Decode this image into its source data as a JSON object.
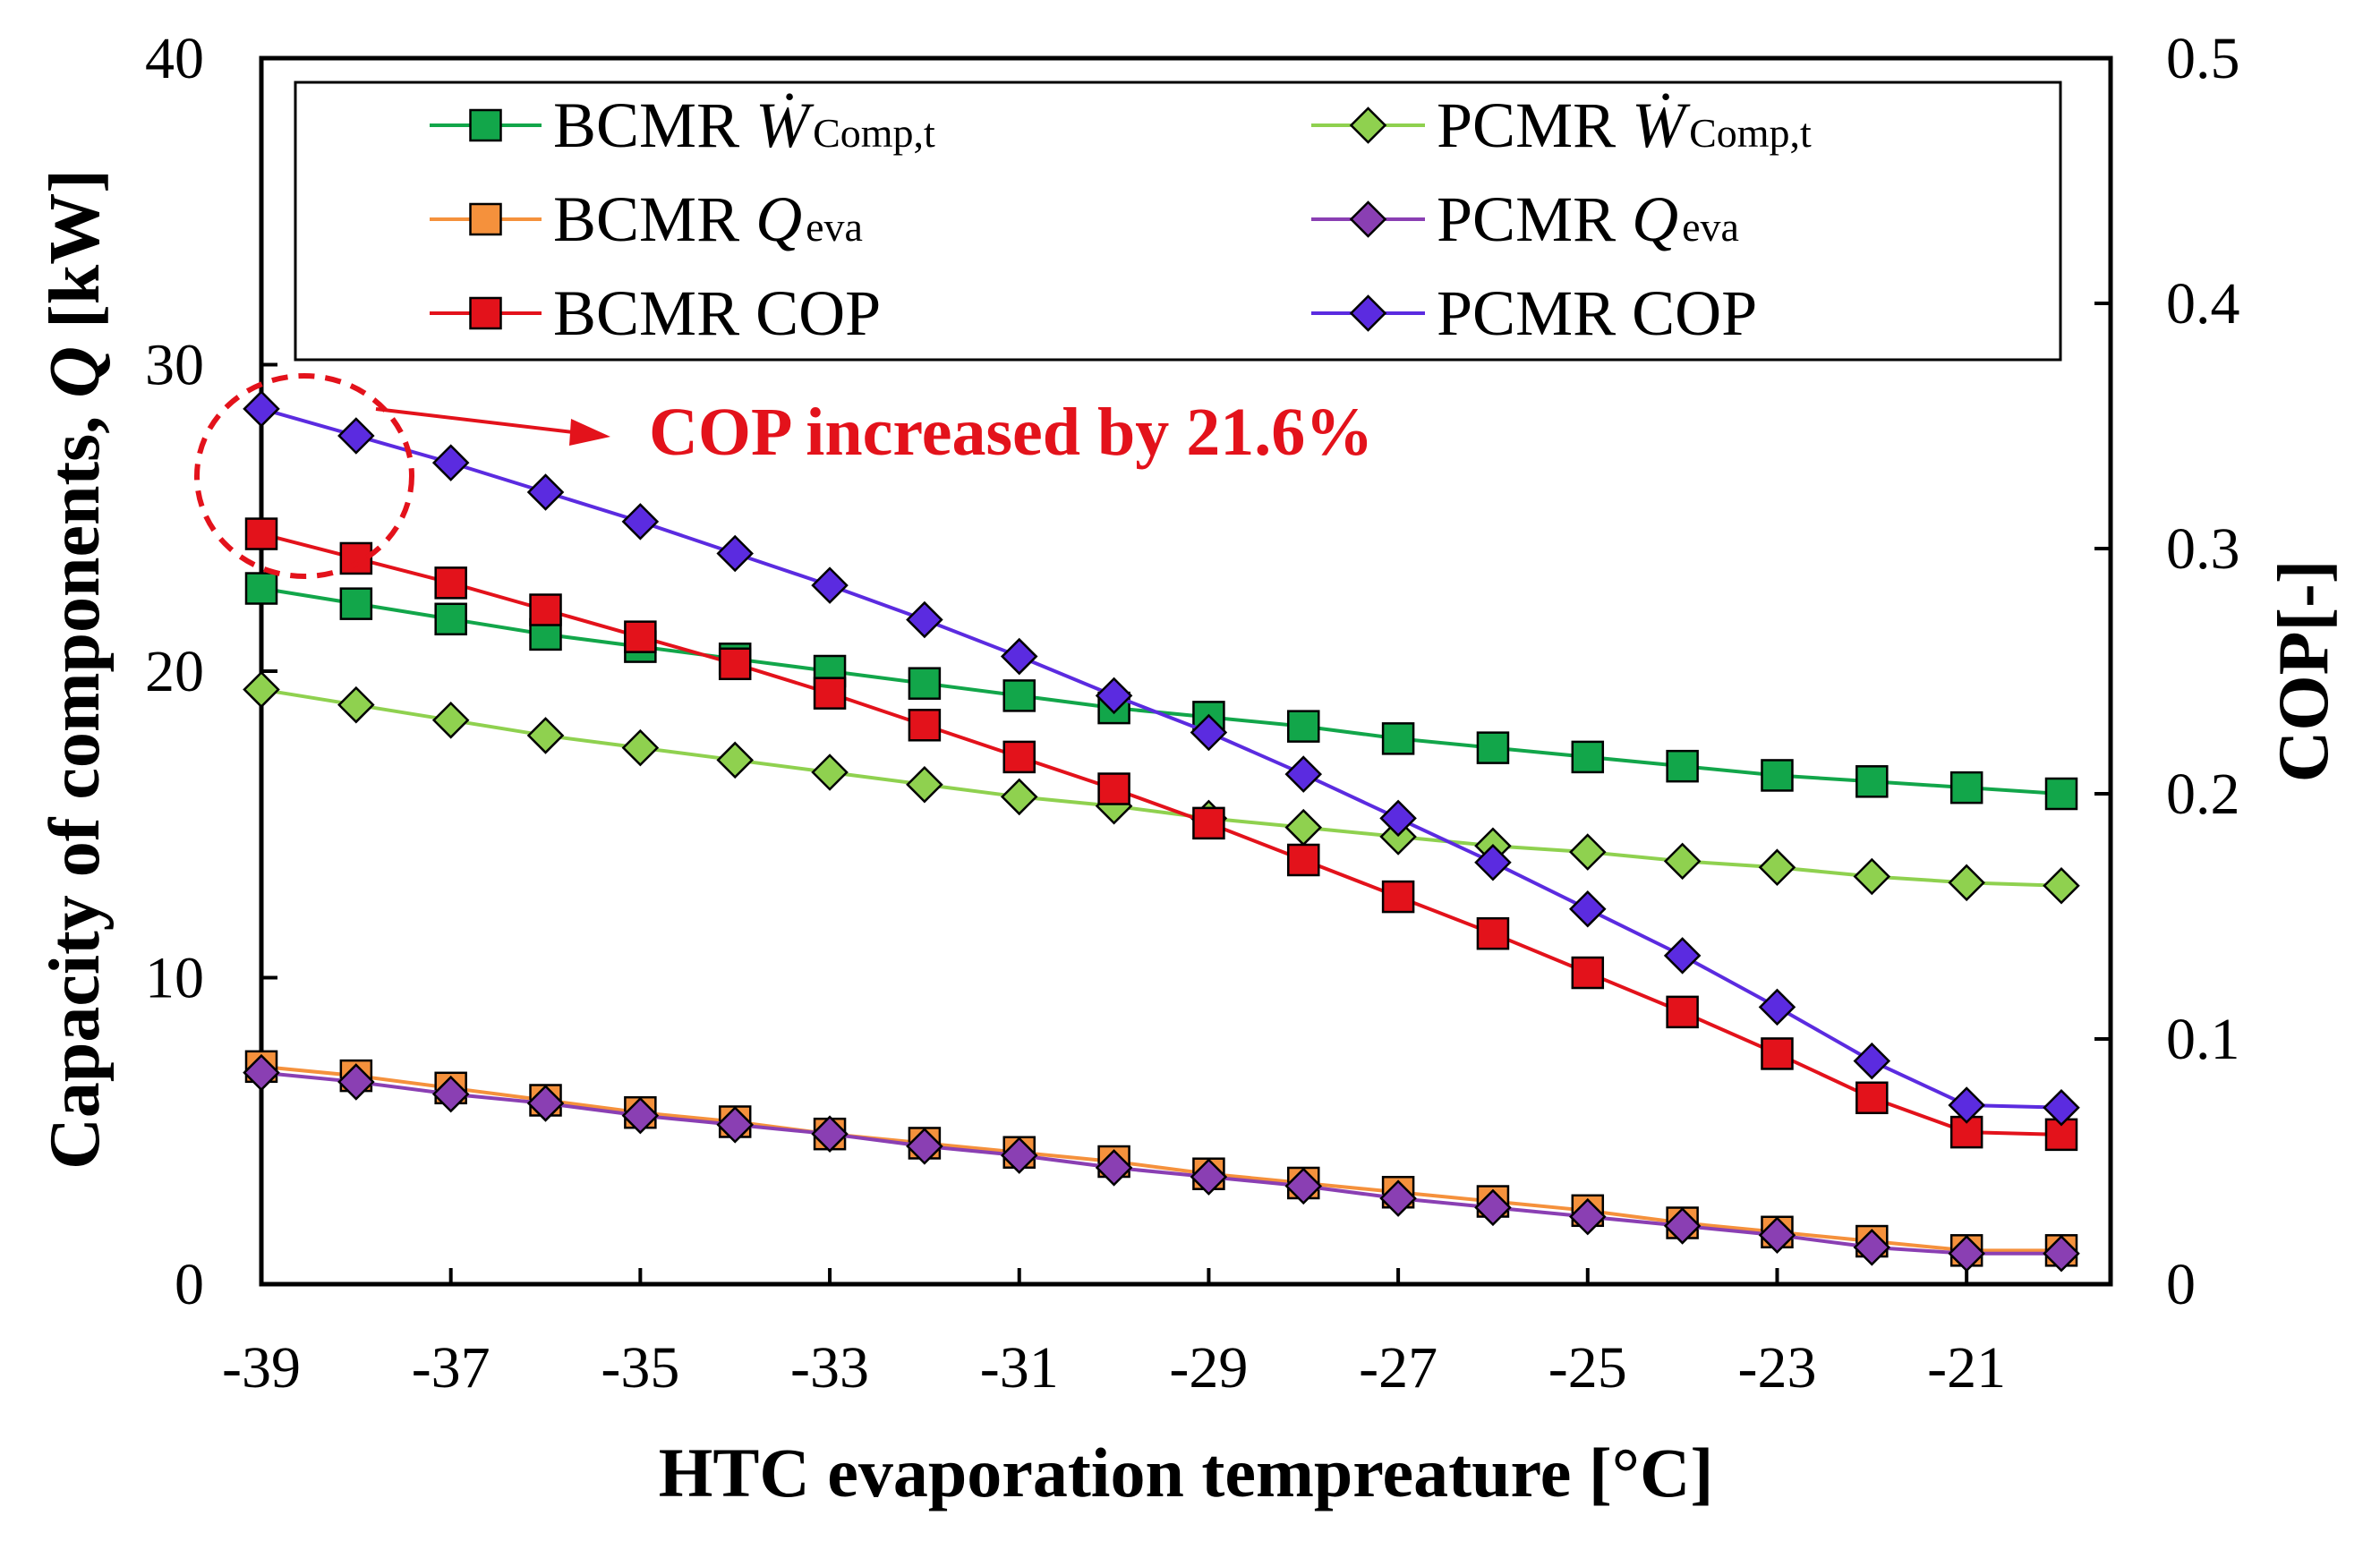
{
  "chart_data": {
    "type": "line",
    "x": [
      -39,
      -38,
      -37,
      -36,
      -35,
      -34,
      -33,
      -32,
      -31,
      -30,
      -29,
      -28,
      -27,
      -26,
      -25,
      -24,
      -23,
      -22,
      -21,
      -20
    ],
    "xlabel": "HTC evaporation tempreature [°C]",
    "ylabel_left": {
      "pre": "Capacity of components, ",
      "var": "Q",
      "unit": " [kW]"
    },
    "ylabel_right": "COP[-]",
    "xlim": [
      -39,
      -20
    ],
    "xtick_labels": [
      "-39",
      "-37",
      "-35",
      "-33",
      "-31",
      "-29",
      "-27",
      "-25",
      "-23",
      "-21"
    ],
    "ylim_left": [
      0,
      40
    ],
    "ytick_labels_left": [
      "0",
      "10",
      "20",
      "30",
      "40"
    ],
    "ylim_right": [
      0,
      0.5
    ],
    "ytick_labels_right": [
      "0",
      "0.1",
      "0.2",
      "0.3",
      "0.4",
      "0.5"
    ],
    "annotation": "COP increased by 21.6%",
    "series": [
      {
        "id": "bcmr_w",
        "name": "BCMR",
        "sym": "Ẇ",
        "sub": "Comp,t",
        "axis": "left",
        "marker": "square",
        "color": "#12a64a",
        "line": "#12a64a",
        "values": [
          22.7,
          22.2,
          21.7,
          21.2,
          20.8,
          20.4,
          20.0,
          19.6,
          19.2,
          18.8,
          18.5,
          18.2,
          17.8,
          17.5,
          17.2,
          16.9,
          16.6,
          16.4,
          16.2,
          16.0
        ]
      },
      {
        "id": "pcmr_w",
        "name": "PCMR",
        "sym": "Ẇ",
        "sub": "Comp,t",
        "axis": "left",
        "marker": "diamond",
        "color": "#8fd14f",
        "line": "#8fd14f",
        "values": [
          19.4,
          18.9,
          18.4,
          17.9,
          17.5,
          17.1,
          16.7,
          16.3,
          15.9,
          15.6,
          15.2,
          14.9,
          14.6,
          14.3,
          14.1,
          13.8,
          13.6,
          13.3,
          13.1,
          13.0
        ]
      },
      {
        "id": "bcmr_q",
        "name": "BCMR",
        "sym": "Q",
        "sub": "eva",
        "axis": "left",
        "marker": "square",
        "color": "#f5913c",
        "line": "#f5913c",
        "values": [
          7.1,
          6.8,
          6.4,
          6.0,
          5.6,
          5.3,
          4.9,
          4.6,
          4.3,
          4.0,
          3.6,
          3.3,
          3.0,
          2.7,
          2.4,
          2.0,
          1.7,
          1.4,
          1.1,
          1.1
        ]
      },
      {
        "id": "pcmr_q",
        "name": "PCMR",
        "sym": "Q",
        "sub": "eva",
        "axis": "left",
        "marker": "diamond",
        "color": "#8a3fb3",
        "line": "#8a3fb3",
        "values": [
          6.9,
          6.6,
          6.2,
          5.9,
          5.5,
          5.2,
          4.9,
          4.5,
          4.2,
          3.8,
          3.5,
          3.2,
          2.8,
          2.5,
          2.2,
          1.9,
          1.6,
          1.2,
          1.0,
          1.0
        ]
      },
      {
        "id": "bcmr_cop",
        "name": "BCMR COP",
        "sym": "",
        "sub": "",
        "axis": "right",
        "marker": "square",
        "color": "#e3121b",
        "line": "#e3121b",
        "values": [
          0.306,
          0.296,
          0.286,
          0.275,
          0.264,
          0.253,
          0.241,
          0.228,
          0.215,
          0.202,
          0.188,
          0.173,
          0.158,
          0.143,
          0.127,
          0.111,
          0.094,
          0.076,
          0.062,
          0.061
        ]
      },
      {
        "id": "pcmr_cop",
        "name": "PCMR COP",
        "sym": "",
        "sub": "",
        "axis": "right",
        "marker": "diamond",
        "color": "#5b2be0",
        "line": "#5b2be0",
        "values": [
          0.357,
          0.346,
          0.335,
          0.323,
          0.311,
          0.298,
          0.285,
          0.271,
          0.256,
          0.24,
          0.225,
          0.208,
          0.19,
          0.172,
          0.153,
          0.134,
          0.113,
          0.091,
          0.073,
          0.072
        ]
      }
    ]
  }
}
